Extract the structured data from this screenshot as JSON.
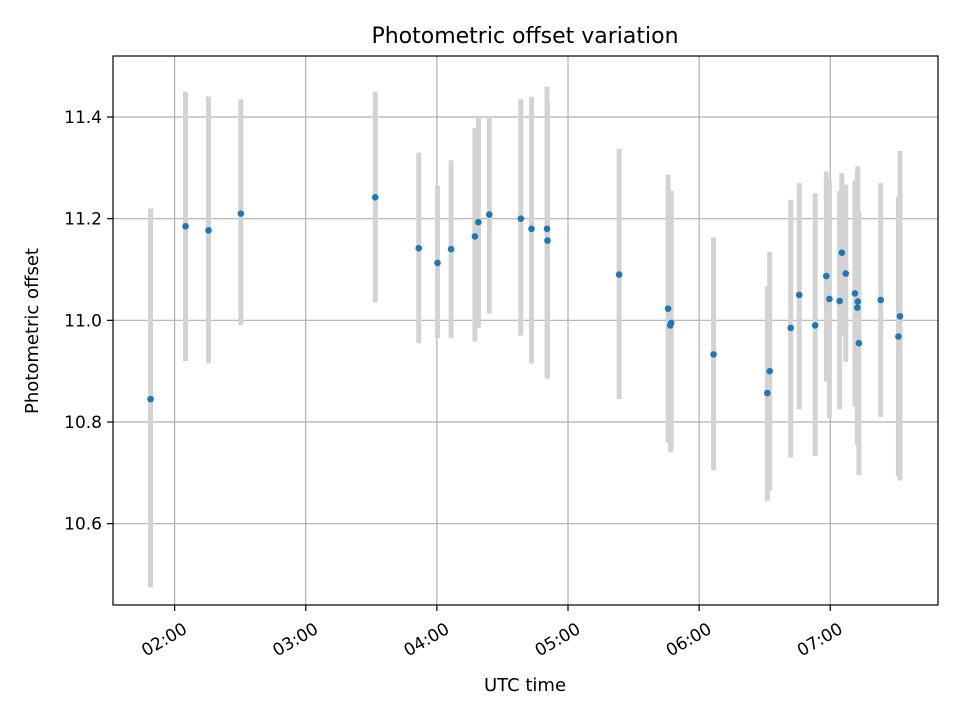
{
  "chart_data": {
    "type": "scatter",
    "title": "Photometric offset variation",
    "xlabel": "UTC time",
    "ylabel": "Photometric offset",
    "x_unit": "minutes",
    "x_ticks": [
      "02:00",
      "03:00",
      "04:00",
      "05:00",
      "06:00",
      "07:00"
    ],
    "x_tick_values": [
      120,
      180,
      240,
      300,
      360,
      420
    ],
    "y_ticks": [
      "10.6",
      "10.8",
      "11.0",
      "11.2",
      "11.4"
    ],
    "y_tick_values": [
      10.6,
      10.8,
      11.0,
      11.2,
      11.4
    ],
    "xlim": [
      91.8,
      469.3
    ],
    "ylim": [
      10.44,
      11.52
    ],
    "grid": true,
    "colors": {
      "marker": "#1f77b4",
      "errorbar": "#d3d3d3",
      "grid": "#b0b0b0",
      "axes": "#000000"
    },
    "points": [
      {
        "x": 109.0,
        "y": 10.845,
        "lo": 10.475,
        "hi": 11.22
      },
      {
        "x": 125.0,
        "y": 11.185,
        "lo": 10.92,
        "hi": 11.45
      },
      {
        "x": 135.5,
        "y": 11.177,
        "lo": 10.915,
        "hi": 11.44
      },
      {
        "x": 150.3,
        "y": 11.21,
        "lo": 10.99,
        "hi": 11.435
      },
      {
        "x": 211.8,
        "y": 11.242,
        "lo": 11.035,
        "hi": 11.45
      },
      {
        "x": 231.7,
        "y": 11.142,
        "lo": 10.955,
        "hi": 11.33
      },
      {
        "x": 240.3,
        "y": 11.113,
        "lo": 10.965,
        "hi": 11.265
      },
      {
        "x": 246.5,
        "y": 11.14,
        "lo": 10.965,
        "hi": 11.315
      },
      {
        "x": 257.4,
        "y": 11.165,
        "lo": 10.958,
        "hi": 11.378
      },
      {
        "x": 259.0,
        "y": 11.193,
        "lo": 10.985,
        "hi": 11.4
      },
      {
        "x": 264.0,
        "y": 11.208,
        "lo": 11.013,
        "hi": 11.4
      },
      {
        "x": 278.4,
        "y": 11.2,
        "lo": 10.97,
        "hi": 11.435
      },
      {
        "x": 283.3,
        "y": 11.18,
        "lo": 10.915,
        "hi": 11.44
      },
      {
        "x": 290.4,
        "y": 11.18,
        "lo": 10.89,
        "hi": 11.46
      },
      {
        "x": 290.6,
        "y": 11.157,
        "lo": 10.885,
        "hi": 11.43
      },
      {
        "x": 323.4,
        "y": 11.09,
        "lo": 10.845,
        "hi": 11.337
      },
      {
        "x": 345.8,
        "y": 11.023,
        "lo": 10.76,
        "hi": 11.287
      },
      {
        "x": 346.8,
        "y": 10.99,
        "lo": 10.74,
        "hi": 11.25
      },
      {
        "x": 347.2,
        "y": 10.995,
        "lo": 10.745,
        "hi": 11.255
      },
      {
        "x": 366.6,
        "y": 10.933,
        "lo": 10.705,
        "hi": 11.163
      },
      {
        "x": 391.2,
        "y": 10.857,
        "lo": 10.645,
        "hi": 11.067
      },
      {
        "x": 392.3,
        "y": 10.9,
        "lo": 10.665,
        "hi": 11.135
      },
      {
        "x": 401.9,
        "y": 10.985,
        "lo": 10.73,
        "hi": 11.237
      },
      {
        "x": 405.8,
        "y": 11.05,
        "lo": 10.825,
        "hi": 11.27
      },
      {
        "x": 413.1,
        "y": 10.99,
        "lo": 10.733,
        "hi": 11.25
      },
      {
        "x": 418.2,
        "y": 11.087,
        "lo": 10.88,
        "hi": 11.293
      },
      {
        "x": 419.6,
        "y": 11.042,
        "lo": 10.808,
        "hi": 11.275
      },
      {
        "x": 424.3,
        "y": 11.038,
        "lo": 10.825,
        "hi": 11.255
      },
      {
        "x": 425.3,
        "y": 11.133,
        "lo": 10.97,
        "hi": 11.29
      },
      {
        "x": 427.1,
        "y": 11.092,
        "lo": 10.918,
        "hi": 11.267
      },
      {
        "x": 431.3,
        "y": 11.053,
        "lo": 10.83,
        "hi": 11.275
      },
      {
        "x": 432.4,
        "y": 11.025,
        "lo": 10.755,
        "hi": 11.295
      },
      {
        "x": 432.6,
        "y": 11.037,
        "lo": 10.775,
        "hi": 11.303
      },
      {
        "x": 433.1,
        "y": 10.955,
        "lo": 10.695,
        "hi": 11.215
      },
      {
        "x": 443.1,
        "y": 11.04,
        "lo": 10.81,
        "hi": 11.27
      },
      {
        "x": 451.2,
        "y": 10.968,
        "lo": 10.693,
        "hi": 11.243
      },
      {
        "x": 451.9,
        "y": 11.008,
        "lo": 10.685,
        "hi": 11.333
      }
    ]
  }
}
